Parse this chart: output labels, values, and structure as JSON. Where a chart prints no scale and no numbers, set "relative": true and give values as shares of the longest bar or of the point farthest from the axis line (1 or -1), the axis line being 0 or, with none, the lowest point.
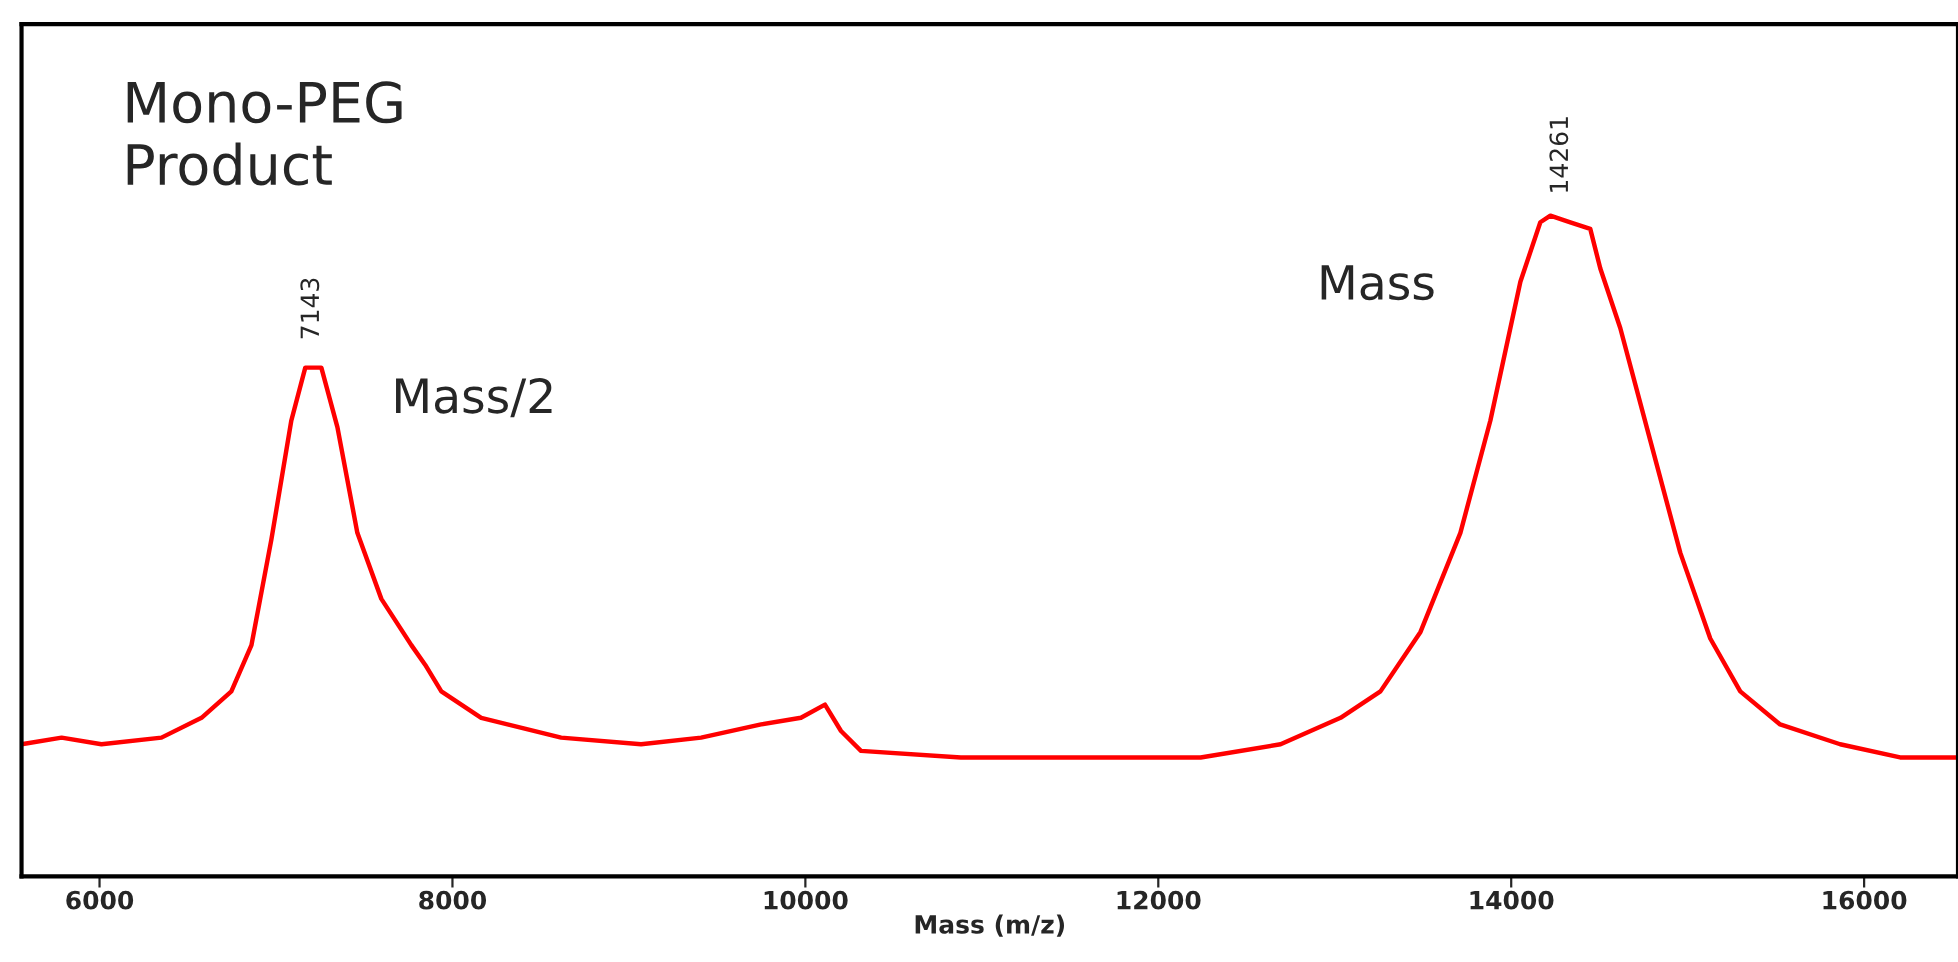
{
  "chart_data": {
    "type": "line",
    "relative": true,
    "xlabel": "Mass (m/z)",
    "x": [
      5558,
      5785,
      6011,
      6351,
      6578,
      6747,
      6861,
      6974,
      7087,
      7166,
      7257,
      7348,
      7461,
      7597,
      7767,
      7846,
      7937,
      8163,
      8616,
      9069,
      9409,
      9749,
      9975,
      10111,
      10202,
      10315,
      10881,
      11560,
      12240,
      12693,
      13033,
      13259,
      13486,
      13712,
      13882,
      14052,
      14165,
      14222,
      14335,
      14448,
      14505,
      14618,
      14788,
      14958,
      15128,
      15298,
      15524,
      15864,
      16204,
      16532
    ],
    "series": [
      {
        "color": "#ff0000",
        "values": [
          0.2,
          0.21,
          0.2,
          0.21,
          0.24,
          0.28,
          0.35,
          0.51,
          0.69,
          0.77,
          0.77,
          0.68,
          0.52,
          0.42,
          0.35,
          0.32,
          0.28,
          0.24,
          0.21,
          0.2,
          0.21,
          0.23,
          0.24,
          0.26,
          0.22,
          0.19,
          0.18,
          0.18,
          0.18,
          0.2,
          0.24,
          0.28,
          0.37,
          0.52,
          0.69,
          0.9,
          0.99,
          1,
          0.99,
          0.98,
          0.92,
          0.83,
          0.66,
          0.49,
          0.36,
          0.28,
          0.23,
          0.2,
          0.18,
          0.18
        ]
      }
    ],
    "xlim": [
      5558,
      16532
    ],
    "xticks": [
      6000,
      8000,
      10000,
      12000,
      14000,
      16000
    ],
    "tick_labels": "x",
    "grid": false,
    "legend": false,
    "annotations": [
      "Mono-PEG\nProduct",
      "7143",
      "14261",
      "Mass/2",
      "Mass"
    ]
  }
}
